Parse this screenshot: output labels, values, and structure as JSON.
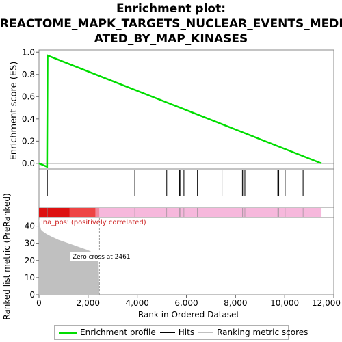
{
  "title_lines": [
    "Enrichment plot:",
    "REACTOME_MAPK_TARGETS_NUCLEAR_EVENTS_MEDI",
    "ATED_BY_MAP_KINASES"
  ],
  "legend": [
    {
      "label": "Enrichment profile",
      "color": "#00dd00",
      "icon": "line-swatch"
    },
    {
      "label": "Hits",
      "color": "#000000",
      "icon": "line-swatch"
    },
    {
      "label": "Ranking metric scores",
      "color": "#c0c0c0",
      "icon": "line-swatch"
    }
  ],
  "chart_data": [
    {
      "type": "line",
      "name": "enrichment-profile",
      "ylabel": "Enrichment score (ES)",
      "xlim": [
        0,
        12000
      ],
      "ylim": [
        -0.05,
        1.02
      ],
      "yticks": [
        0.0,
        0.2,
        0.4,
        0.6,
        0.8,
        1.0
      ],
      "ytick_labels": [
        "0.0",
        "0.2",
        "0.4",
        "0.6",
        "0.8",
        "1.0"
      ],
      "grid": false,
      "color": "#00dd00",
      "x": [
        0,
        330,
        350,
        11500
      ],
      "y": [
        0.0,
        -0.03,
        0.97,
        0.0
      ]
    },
    {
      "type": "scatter",
      "name": "hits",
      "xlim": [
        0,
        12000
      ],
      "color": "#000000",
      "x": [
        340,
        3900,
        5200,
        5720,
        5760,
        5900,
        6450,
        7450,
        8280,
        8330,
        8380,
        9720,
        9760,
        10020,
        10750
      ]
    },
    {
      "type": "heatmap",
      "name": "rank-color-bar",
      "xlim": [
        0,
        12000
      ],
      "segments": [
        {
          "x0": 0,
          "x1": 1250,
          "color": "#dd1111"
        },
        {
          "x0": 1250,
          "x1": 2300,
          "color": "#ee4444"
        },
        {
          "x0": 2300,
          "x1": 2460,
          "color": "#f088a0"
        },
        {
          "x0": 2460,
          "x1": 11500,
          "color": "#f6b8dc"
        }
      ]
    },
    {
      "type": "area",
      "name": "ranked-list-metric",
      "xlabel": "Rank in Ordered Dataset",
      "ylabel": "Ranked list metric (PreRanked)",
      "xlim": [
        0,
        12000
      ],
      "ylim": [
        0,
        45
      ],
      "xticks": [
        0,
        2000,
        4000,
        6000,
        8000,
        10000,
        12000
      ],
      "xtick_labels": [
        "0",
        "2,000",
        "4,000",
        "6,000",
        "8,000",
        "10,000",
        "12,000"
      ],
      "yticks": [
        0,
        10,
        20,
        30,
        40
      ],
      "ytick_labels": [
        "0",
        "10",
        "20",
        "30",
        "40"
      ],
      "color": "#c0c0c0",
      "x": [
        0,
        30,
        80,
        150,
        300,
        500,
        800,
        1100,
        1400,
        1700,
        2000,
        2200,
        2350,
        2420,
        2461
      ],
      "y": [
        45,
        41,
        38,
        37,
        35.5,
        34,
        32,
        30.5,
        29,
        27.5,
        26,
        24.5,
        23,
        21,
        0
      ],
      "positive_label": "'na_pos' (positively correlated)",
      "zero_cross_label": "Zero cross at 2461",
      "zero_cross_x": 2461
    }
  ]
}
